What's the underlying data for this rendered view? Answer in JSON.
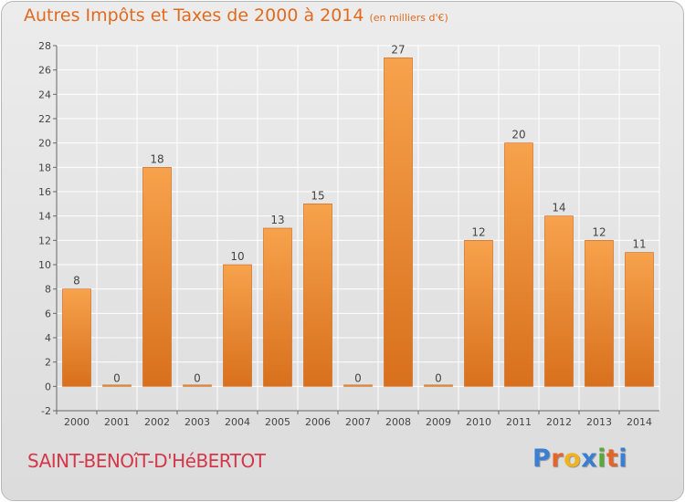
{
  "chart_data": {
    "type": "bar",
    "title": "Autres Impôts et Taxes de 2000 à 2014",
    "subtitle": "(en milliers d'€)",
    "categories": [
      "2000",
      "2001",
      "2002",
      "2003",
      "2004",
      "2005",
      "2006",
      "2007",
      "2008",
      "2009",
      "2010",
      "2011",
      "2012",
      "2013",
      "2014"
    ],
    "values": [
      8,
      0,
      18,
      0,
      10,
      13,
      15,
      0,
      27,
      0,
      12,
      20,
      14,
      12,
      11
    ],
    "data_labels": [
      "8",
      "0",
      "18",
      "0",
      "10",
      "13",
      "15",
      "0",
      "27",
      "0",
      "12",
      "20",
      "14",
      "12",
      "11"
    ],
    "ylim": [
      -2,
      28
    ],
    "yticks": [
      "-2",
      "0",
      "2",
      "4",
      "6",
      "8",
      "10",
      "12",
      "14",
      "16",
      "18",
      "20",
      "22",
      "24",
      "26",
      "28"
    ],
    "xlabel": "",
    "ylabel": "",
    "grid": true,
    "legend": "none",
    "bar_color": "#f08a2c"
  },
  "footer": {
    "commune": "SAINT-BENOîT-D'HéBERTOT",
    "logo_letters": [
      "P",
      "r",
      "o",
      "x",
      "i",
      "t",
      "i"
    ],
    "logo_colors": [
      "#3a7fd0",
      "#e2662a",
      "#f0b21e",
      "#3a7fd0",
      "#5aa83a",
      "#e2662a",
      "#3a7fd0"
    ]
  }
}
